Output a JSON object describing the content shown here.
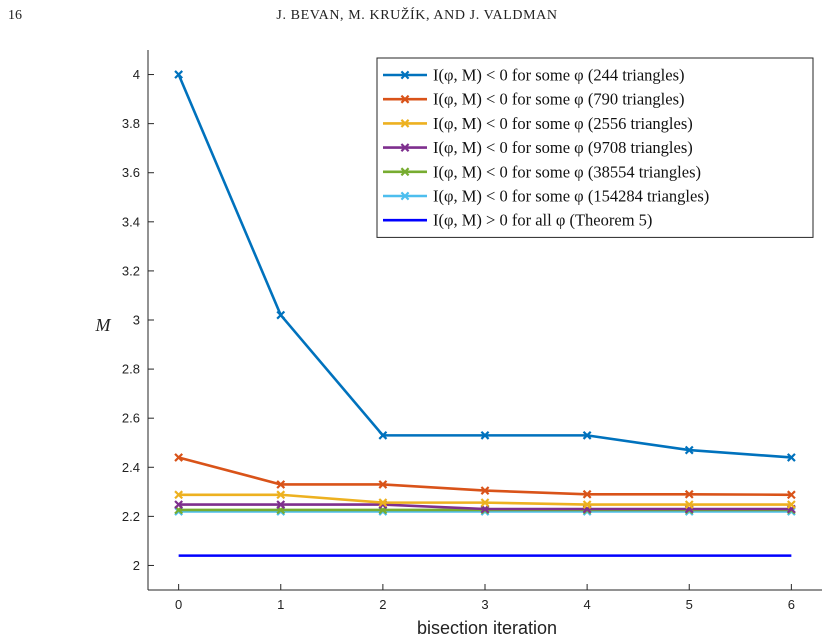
{
  "page": {
    "number": "16",
    "running_head": "J. BEVAN, M. KRUŽÍK, AND J. VALDMAN"
  },
  "chart_data": {
    "type": "line",
    "xlabel": "bisection iteration",
    "ylabel": "M",
    "x": [
      0,
      1,
      2,
      3,
      4,
      5,
      6
    ],
    "xlim": [
      -0.3,
      6.3
    ],
    "ylim": [
      1.9,
      4.1
    ],
    "xticks": [
      "0",
      "1",
      "2",
      "3",
      "4",
      "5",
      "6"
    ],
    "yticks": [
      "2",
      "2.2",
      "2.4",
      "2.6",
      "2.8",
      "3",
      "3.2",
      "3.4",
      "3.6",
      "3.8",
      "4"
    ],
    "legend_position": "top-right",
    "series": [
      {
        "name": "I(φ, M) < 0 for some φ (244 triangles)",
        "color": "#0072BD",
        "marker": "x",
        "values": [
          4.0,
          3.02,
          2.53,
          2.53,
          2.53,
          2.47,
          2.44
        ]
      },
      {
        "name": "I(φ, M) < 0 for some φ (790 triangles)",
        "color": "#D95319",
        "marker": "x",
        "values": [
          2.44,
          2.33,
          2.33,
          2.305,
          2.29,
          2.29,
          2.288
        ]
      },
      {
        "name": "I(φ, M) < 0 for some φ (2556 triangles)",
        "color": "#EDB120",
        "marker": "x",
        "values": [
          2.288,
          2.288,
          2.256,
          2.256,
          2.248,
          2.248,
          2.248
        ]
      },
      {
        "name": "I(φ, M) < 0 for some φ (9708 triangles)",
        "color": "#7E2F8E",
        "marker": "x",
        "values": [
          2.248,
          2.248,
          2.248,
          2.23,
          2.23,
          2.23,
          2.23
        ]
      },
      {
        "name": "I(φ, M) < 0 for some φ (38554 triangles)",
        "color": "#77AC30",
        "marker": "x",
        "values": [
          2.226,
          2.226,
          2.226,
          2.226,
          2.226,
          2.226,
          2.226
        ]
      },
      {
        "name": "I(φ, M) < 0 for some φ (154284 triangles)",
        "color": "#4DBEEE",
        "marker": "x",
        "values": [
          2.22,
          2.22,
          2.22,
          2.22,
          2.22,
          2.22,
          2.22
        ]
      },
      {
        "name": "I(φ, M) > 0 for all φ (Theorem 5)",
        "color": "#0000FF",
        "marker": "none",
        "values": [
          2.04,
          2.04,
          2.04,
          2.04,
          2.04,
          2.04,
          2.04
        ]
      }
    ]
  }
}
